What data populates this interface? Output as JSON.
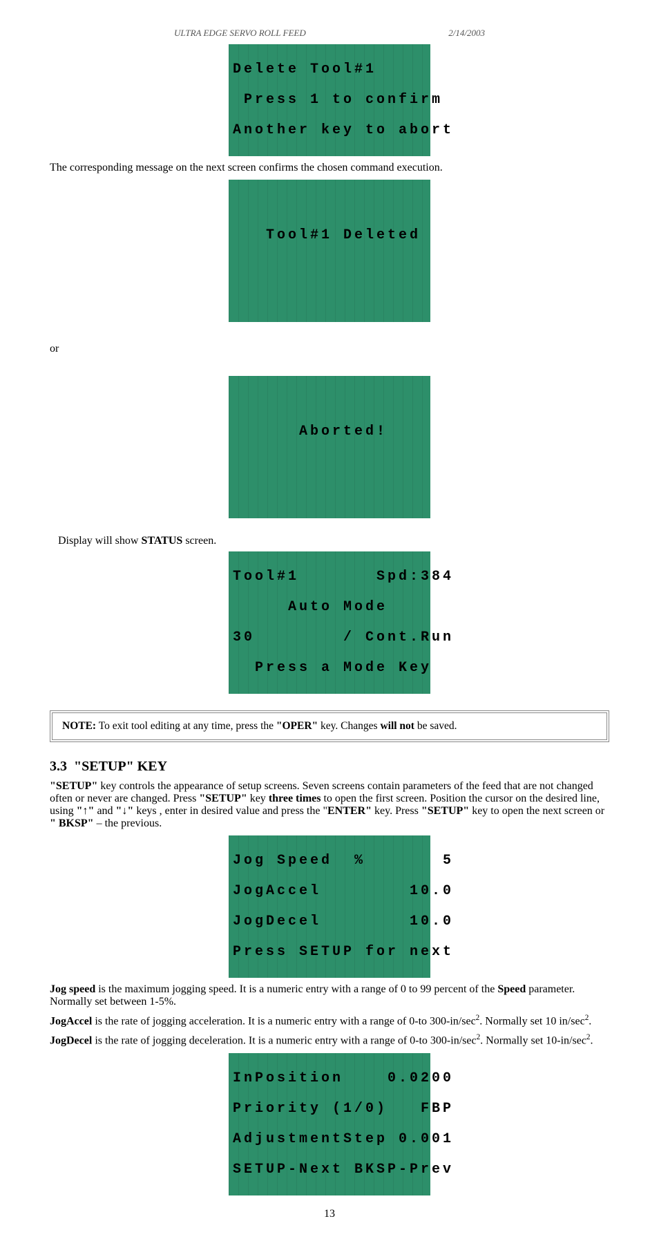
{
  "header": {
    "title": "ULTRA EDGE SERVO ROLL FEED",
    "date": "2/14/2003"
  },
  "lcd1": {
    "rows": [
      "Delete Tool#1       ",
      " Press 1 to confirm ",
      "Another key to abort"
    ]
  },
  "txt1": "The corresponding message on the next screen confirms the chosen command execution.",
  "lcd2": {
    "rows": [
      "                    ",
      "   Tool#1 Deleted   ",
      "                    ",
      "                    "
    ]
  },
  "or_text": "or",
  "lcd3": {
    "rows": [
      "                    ",
      "      Aborted!      ",
      "                    ",
      "                    "
    ]
  },
  "status_pre": "Display will show ",
  "status_bold": "STATUS",
  "status_post": " screen.",
  "lcd4": {
    "rows": [
      "Tool#1       Spd:384",
      "     Auto Mode      ",
      "30        / Cont.Run",
      "  Press a Mode Key  "
    ]
  },
  "note": {
    "pre": "NOTE:",
    "mid1": " To exit tool editing at any time, press the ",
    "oper": "\"OPER\"",
    "mid2": " key.  Changes ",
    "wn": "will not",
    "post": " be saved."
  },
  "section": {
    "num": "3.3",
    "title": "\"SETUP\" KEY"
  },
  "para_setup": {
    "b1": "\"SETUP\"",
    "t1": " key controls the appearance of setup screens.  Seven screens contain parameters of the feed that are not changed often or never are changed.  Press ",
    "b2": "\"SETUP\"",
    "t2": " key ",
    "b3": "three times",
    "t3": " to open the first screen.  Position the cursor on the desired line, using ",
    "b4": "\"↑\"",
    "t4": " and ",
    "b5": "\"↓\"",
    "t5": " keys , enter in desired value and press the \"",
    "b6": "ENTER\"",
    "t6": " key.  Press ",
    "b7": "\"SETUP\"",
    "t7": " key to open the next screen or  ",
    "b8": "\" BKSP\"",
    "t8": " – the previous."
  },
  "lcd5": {
    "rows": [
      "Jog Speed  %       5",
      "JogAccel        10.0",
      "JogDecel        10.0",
      "Press SETUP for next"
    ]
  },
  "jogspeed": {
    "b1": "Jog speed",
    "t1": " is the maximum jogging speed.  It is a numeric entry with a range of 0 to 99 percent of the ",
    "b2": "Speed",
    "t2": " parameter. Normally set between 1-5%."
  },
  "jogaccel": {
    "b1": "JogAccel",
    "t1": " is the rate of jogging acceleration.  It is a numeric entry with a range of 0-to 300-in/sec",
    "sup": "2",
    "t2": ".  Normally set 10 in/sec",
    "t3": "."
  },
  "jogdecel": {
    "b1": "JogDecel",
    "t1": " is the rate of jogging deceleration.  It is a numeric entry with a range of 0-to 300-in/sec",
    "sup": "2",
    "t2": ".  Normally set 10-in/sec",
    "t3": "."
  },
  "lcd6": {
    "rows": [
      "InPosition    0.0200",
      "Priority (1/0)   FBP",
      "AdjustmentStep 0.001",
      "SETUP-Next BKSP-Prev"
    ]
  },
  "pagenum": "13"
}
